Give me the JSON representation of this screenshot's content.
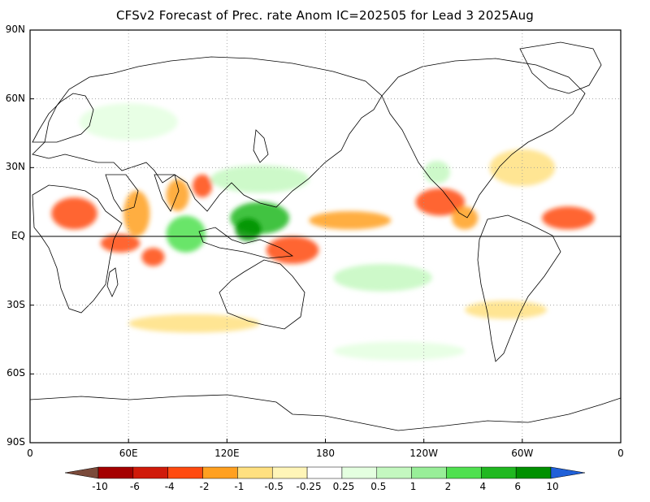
{
  "title": "CFSv2 Forecast of Prec. rate Anom IC=202505 for Lead 3 2025Aug",
  "lat_axis": [
    "90N",
    "60N",
    "30N",
    "EQ",
    "30S",
    "60S",
    "90S"
  ],
  "lon_axis": [
    "0",
    "60E",
    "120E",
    "180",
    "120W",
    "60W",
    "0"
  ],
  "colorbar": {
    "labels": [
      "-10",
      "-6",
      "-4",
      "-2",
      "-1",
      "-0.5",
      "-0.25",
      "0.25",
      "0.5",
      "1",
      "2",
      "4",
      "6",
      "10"
    ],
    "colors": [
      "#7a4a3a",
      "#a40000",
      "#d01a0a",
      "#ff4a10",
      "#ffa020",
      "#ffe080",
      "#fff5b8",
      "#ffffff",
      "#e4ffe0",
      "#c4f8c0",
      "#98ee98",
      "#50e050",
      "#20b820",
      "#009000",
      "#2060d8"
    ]
  },
  "map": {
    "projection": "equirectangular",
    "lon_range": [
      0,
      360
    ],
    "lat_range": [
      -90,
      90
    ],
    "grid": true,
    "equator_line": true,
    "anomaly_blobs": [
      {
        "lon": 27,
        "lat": 10,
        "rx": 14,
        "ry": 7,
        "level": "#ff4a10"
      },
      {
        "lon": 55,
        "lat": -3,
        "rx": 12,
        "ry": 4,
        "level": "#ff4a10"
      },
      {
        "lon": 65,
        "lat": 10,
        "rx": 8,
        "ry": 10,
        "level": "#ffa020"
      },
      {
        "lon": 75,
        "lat": -9,
        "rx": 7,
        "ry": 4,
        "level": "#ff4a10"
      },
      {
        "lon": 90,
        "lat": 18,
        "rx": 7,
        "ry": 7,
        "level": "#ffa020"
      },
      {
        "lon": 95,
        "lat": 1,
        "rx": 12,
        "ry": 8,
        "level": "#50e050"
      },
      {
        "lon": 105,
        "lat": 22,
        "rx": 6,
        "ry": 5,
        "level": "#ff4a10"
      },
      {
        "lon": 140,
        "lat": 8,
        "rx": 18,
        "ry": 7,
        "level": "#20b820"
      },
      {
        "lon": 133,
        "lat": 3,
        "rx": 8,
        "ry": 5,
        "level": "#009000"
      },
      {
        "lon": 160,
        "lat": -6,
        "rx": 16,
        "ry": 6,
        "level": "#ff4a10"
      },
      {
        "lon": 195,
        "lat": 7,
        "rx": 25,
        "ry": 4,
        "level": "#ffa020"
      },
      {
        "lon": 250,
        "lat": 15,
        "rx": 15,
        "ry": 6,
        "level": "#ff4a10"
      },
      {
        "lon": 265,
        "lat": 8,
        "rx": 8,
        "ry": 5,
        "level": "#ffa020"
      },
      {
        "lon": 328,
        "lat": 8,
        "rx": 16,
        "ry": 5,
        "level": "#ff4a10"
      },
      {
        "lon": 248,
        "lat": 28,
        "rx": 8,
        "ry": 5,
        "level": "#c4f8c0"
      },
      {
        "lon": 140,
        "lat": 25,
        "rx": 30,
        "ry": 6,
        "level": "#c4f8c0"
      },
      {
        "lon": 215,
        "lat": -18,
        "rx": 30,
        "ry": 6,
        "level": "#c4f8c0"
      },
      {
        "lon": 100,
        "lat": -38,
        "rx": 40,
        "ry": 4,
        "level": "#ffe080"
      },
      {
        "lon": 290,
        "lat": -32,
        "rx": 25,
        "ry": 4,
        "level": "#ffe080"
      },
      {
        "lon": 225,
        "lat": -50,
        "rx": 40,
        "ry": 4,
        "level": "#e4ffe0"
      },
      {
        "lon": 60,
        "lat": 50,
        "rx": 30,
        "ry": 8,
        "level": "#e4ffe0"
      },
      {
        "lon": 300,
        "lat": 30,
        "rx": 20,
        "ry": 8,
        "level": "#ffe080"
      }
    ]
  }
}
